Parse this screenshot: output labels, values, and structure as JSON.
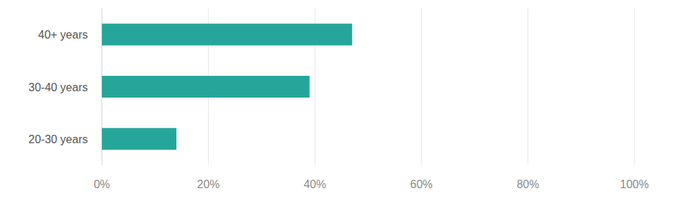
{
  "chart_data": {
    "type": "bar",
    "orientation": "horizontal",
    "categories": [
      "40+ years",
      "30-40 years",
      "20-30 years"
    ],
    "values": [
      47,
      39,
      14
    ],
    "color": "#26a69a",
    "xlim": [
      0,
      100
    ],
    "xticks": [
      {
        "value": 0,
        "label": "0%"
      },
      {
        "value": 20,
        "label": "20%"
      },
      {
        "value": 40,
        "label": "40%"
      },
      {
        "value": 60,
        "label": "60%"
      },
      {
        "value": 80,
        "label": "80%"
      },
      {
        "value": 100,
        "label": "100%"
      }
    ],
    "grid": true
  }
}
